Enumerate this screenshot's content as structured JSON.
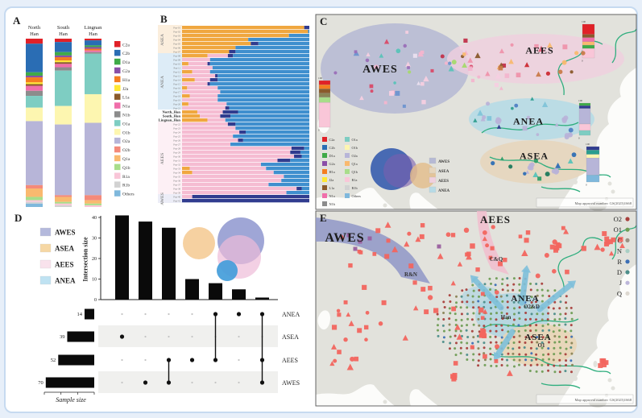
{
  "figure": {
    "bg": "#e7eff9",
    "card_bg": "#ffffff",
    "land": "#e2e2dc",
    "sea": "#fcfcfa",
    "river": "#2fae7e",
    "approval": "Map approval number: GS(2023)1668"
  },
  "panels": {
    "a": {
      "tag": "A"
    },
    "b": {
      "tag": "B"
    },
    "c": {
      "tag": "C"
    },
    "d": {
      "tag": "D"
    },
    "e": {
      "tag": "E"
    }
  },
  "haplogroups": {
    "names": [
      "C2a",
      "C2b",
      "D1a",
      "G2a",
      "H1a",
      "J2a",
      "L1a",
      "N1a",
      "N1b",
      "O1a",
      "O1b",
      "O2a",
      "O2b",
      "Q1a",
      "Q1b",
      "R1a",
      "R1b",
      "Others"
    ],
    "colors": [
      "#e02128",
      "#2a6db4",
      "#3faa48",
      "#8a4fa8",
      "#f47d20",
      "#ffe733",
      "#8a5a2b",
      "#f06eaa",
      "#8c8c8c",
      "#7ecdc2",
      "#fdf6b0",
      "#b7b5d8",
      "#f48a7a",
      "#f9b96f",
      "#a8dd8a",
      "#f9c6d8",
      "#d2d2d2",
      "#7fb8dc"
    ]
  },
  "chart_data": [
    {
      "id": "A",
      "type": "bar",
      "stacked": true,
      "orientation": "vertical",
      "categories": [
        "North Han",
        "South Han",
        "Lingnan Han"
      ],
      "category_lines": [
        [
          "North",
          "Han"
        ],
        [
          "South",
          "Han"
        ],
        [
          "Lingnan",
          "Han"
        ]
      ],
      "stack_labels": [
        "C2a",
        "C2b",
        "D1a",
        "G2a",
        "H1a",
        "J2a",
        "L1a",
        "N1a",
        "N1b",
        "O1a",
        "O1b",
        "O2a",
        "O2b",
        "Q1a",
        "Q1b",
        "R1a",
        "R1b",
        "Others"
      ],
      "series_percent": {
        "North Han": [
          3,
          17,
          2,
          1,
          3,
          1,
          1,
          3,
          3,
          7,
          8,
          38,
          2,
          5,
          2,
          1,
          1,
          2
        ],
        "South Han": [
          2,
          6,
          2,
          1,
          2,
          1,
          1,
          2,
          2,
          21,
          11,
          42,
          1,
          3,
          1,
          1,
          1,
          0
        ],
        "Lingnan Han": [
          1,
          3,
          1,
          1,
          1,
          0,
          0,
          1,
          1,
          24,
          17,
          43,
          3,
          2,
          1,
          1,
          0,
          0
        ]
      }
    },
    {
      "id": "B",
      "type": "bar",
      "stacked": true,
      "orientation": "horizontal",
      "segment_colors": {
        "or": "#f0a73f",
        "pk": "#f5bcd2",
        "bl": "#3f8fce",
        "nv": "#303c8f"
      },
      "bands": [
        {
          "name": "ASEA",
          "color": "#fbeedd",
          "from": 0,
          "to": 6
        },
        {
          "name": "ANEA",
          "color": "#ddecf7",
          "from": 7,
          "to": 20
        },
        {
          "name": "",
          "color": "#ffffff",
          "from": 21,
          "to": 23
        },
        {
          "name": "AEES",
          "color": "#fdf0f5",
          "from": 24,
          "to": 41
        },
        {
          "name": "AWES",
          "color": "#ecedf7",
          "from": 42,
          "to": 43
        }
      ],
      "rows": [
        {
          "l": "Pop-01",
          "s": [
            [
              "or",
              96
            ],
            [
              "nv",
              4
            ]
          ]
        },
        {
          "l": "Pop-02",
          "s": [
            [
              "or",
              99
            ],
            [
              "bl",
              1
            ]
          ]
        },
        {
          "l": "Pop-03",
          "s": [
            [
              "or",
              84
            ],
            [
              "bl",
              16
            ]
          ]
        },
        {
          "l": "Pop-04",
          "s": [
            [
              "or",
              52
            ],
            [
              "bl",
              48
            ]
          ]
        },
        {
          "l": "Pop-05",
          "s": [
            [
              "or",
              54
            ],
            [
              "nv",
              6
            ],
            [
              "bl",
              40
            ]
          ]
        },
        {
          "l": "Pop-06",
          "s": [
            [
              "or",
              42
            ],
            [
              "bl",
              58
            ]
          ]
        },
        {
          "l": "Pop-07",
          "s": [
            [
              "or",
              37
            ],
            [
              "nv",
              5
            ],
            [
              "bl",
              58
            ]
          ]
        },
        {
          "l": "Pop-08",
          "s": [
            [
              "or",
              20
            ],
            [
              "pk",
              16
            ],
            [
              "nv",
              4
            ],
            [
              "bl",
              60
            ]
          ]
        },
        {
          "l": "Pop-09",
          "s": [
            [
              "pk",
              22
            ],
            [
              "bl",
              78
            ]
          ]
        },
        {
          "l": "Pop-10",
          "s": [
            [
              "or",
              5
            ],
            [
              "pk",
              15
            ],
            [
              "nv",
              2
            ],
            [
              "bl",
              78
            ]
          ]
        },
        {
          "l": "Pop-11",
          "s": [
            [
              "pk",
              24
            ],
            [
              "bl",
              76
            ]
          ]
        },
        {
          "l": "Pop-12",
          "s": [
            [
              "or",
              8
            ],
            [
              "pk",
              14
            ],
            [
              "bl",
              78
            ]
          ]
        },
        {
          "l": "Pop-13",
          "s": [
            [
              "pk",
              26
            ],
            [
              "nv",
              2
            ],
            [
              "bl",
              72
            ]
          ]
        },
        {
          "l": "Pop-14",
          "s": [
            [
              "or",
              10
            ],
            [
              "pk",
              12
            ],
            [
              "nv",
              6
            ],
            [
              "bl",
              72
            ]
          ]
        },
        {
          "l": "Pop-15",
          "s": [
            [
              "pk",
              20
            ],
            [
              "nv",
              2
            ],
            [
              "bl",
              78
            ]
          ]
        },
        {
          "l": "Pop-16",
          "s": [
            [
              "or",
              4
            ],
            [
              "pk",
              24
            ],
            [
              "bl",
              72
            ]
          ]
        },
        {
          "l": "Pop-17",
          "s": [
            [
              "pk",
              30
            ],
            [
              "bl",
              70
            ]
          ]
        },
        {
          "l": "Pop-18",
          "s": [
            [
              "or",
              6
            ],
            [
              "pk",
              22
            ],
            [
              "bl",
              72
            ]
          ]
        },
        {
          "l": "Pop-19",
          "s": [
            [
              "pk",
              28
            ],
            [
              "bl",
              72
            ]
          ]
        },
        {
          "l": "Pop-20",
          "s": [
            [
              "or",
              5
            ],
            [
              "pk",
              30
            ],
            [
              "bl",
              65
            ]
          ]
        },
        {
          "l": "Pop-21",
          "s": [
            [
              "pk",
              34
            ],
            [
              "nv",
              3
            ],
            [
              "bl",
              63
            ]
          ]
        },
        {
          "l": "North_Han",
          "b": 1,
          "s": [
            [
              "or",
              12
            ],
            [
              "pk",
              20
            ],
            [
              "nv",
              12
            ],
            [
              "bl",
              56
            ]
          ]
        },
        {
          "l": "South_Han",
          "b": 1,
          "s": [
            [
              "or",
              14
            ],
            [
              "pk",
              16
            ],
            [
              "nv",
              8
            ],
            [
              "bl",
              62
            ]
          ]
        },
        {
          "l": "Lingnan_Han",
          "b": 1,
          "s": [
            [
              "or",
              20
            ],
            [
              "pk",
              14
            ],
            [
              "bl",
              66
            ]
          ]
        },
        {
          "l": "Pop-22",
          "s": [
            [
              "pk",
              36
            ],
            [
              "nv",
              6
            ],
            [
              "bl",
              58
            ]
          ]
        },
        {
          "l": "Pop-23",
          "s": [
            [
              "pk",
              42
            ],
            [
              "bl",
              58
            ]
          ]
        },
        {
          "l": "Pop-24",
          "s": [
            [
              "pk",
              45
            ],
            [
              "nv",
              5
            ],
            [
              "bl",
              50
            ]
          ]
        },
        {
          "l": "Pop-25",
          "s": [
            [
              "pk",
              40
            ],
            [
              "bl",
              60
            ]
          ]
        },
        {
          "l": "Pop-26",
          "s": [
            [
              "pk",
              44
            ],
            [
              "nv",
              4
            ],
            [
              "bl",
              52
            ]
          ]
        },
        {
          "l": "Pop-27",
          "s": [
            [
              "pk",
              38
            ],
            [
              "bl",
              62
            ]
          ]
        },
        {
          "l": "Pop-28",
          "s": [
            [
              "pk",
              86
            ],
            [
              "nv",
              10
            ],
            [
              "bl",
              4
            ]
          ]
        },
        {
          "l": "Pop-29",
          "s": [
            [
              "pk",
              85
            ],
            [
              "nv",
              8
            ],
            [
              "bl",
              7
            ]
          ]
        },
        {
          "l": "Pop-30",
          "s": [
            [
              "pk",
              88
            ],
            [
              "nv",
              6
            ],
            [
              "bl",
              6
            ]
          ]
        },
        {
          "l": "Pop-31",
          "s": [
            [
              "pk",
              75
            ],
            [
              "nv",
              10
            ],
            [
              "bl",
              15
            ]
          ]
        },
        {
          "l": "Pop-32",
          "s": [
            [
              "pk",
              62
            ],
            [
              "bl",
              38
            ]
          ]
        },
        {
          "l": "Pop-33",
          "s": [
            [
              "or",
              6
            ],
            [
              "pk",
              60
            ],
            [
              "bl",
              34
            ]
          ]
        },
        {
          "l": "Pop-34",
          "s": [
            [
              "or",
              8
            ],
            [
              "pk",
              64
            ],
            [
              "bl",
              28
            ]
          ]
        },
        {
          "l": "Pop-35",
          "s": [
            [
              "pk",
              80
            ],
            [
              "bl",
              20
            ]
          ]
        },
        {
          "l": "Pop-36",
          "s": [
            [
              "pk",
              78
            ],
            [
              "bl",
              22
            ]
          ]
        },
        {
          "l": "Pop-37",
          "s": [
            [
              "pk",
              68
            ],
            [
              "bl",
              32
            ]
          ]
        },
        {
          "l": "Pop-38",
          "s": [
            [
              "pk",
              90
            ],
            [
              "nv",
              4
            ],
            [
              "bl",
              6
            ]
          ]
        },
        {
          "l": "Pop-39",
          "s": [
            [
              "pk",
              82
            ],
            [
              "bl",
              18
            ]
          ]
        },
        {
          "l": "Pop-40",
          "s": [
            [
              "pk",
              8
            ],
            [
              "nv",
              92
            ]
          ]
        },
        {
          "l": "Pop-41",
          "s": [
            [
              "nv",
              100
            ]
          ]
        }
      ]
    },
    {
      "id": "D",
      "type": "upset",
      "ylabel": "Intersection size",
      "xlabel": "Sample size",
      "yticks": [
        0,
        10,
        20,
        30,
        40
      ],
      "intersection_sizes": [
        41,
        38,
        35,
        10,
        8,
        5,
        1
      ],
      "memberships": [
        [
          "ASEA"
        ],
        [
          "AWES"
        ],
        [
          "AEES",
          "AWES"
        ],
        [
          "AEES"
        ],
        [
          "ANEA",
          "AEES"
        ],
        [
          "ANEA"
        ],
        [
          "ANEA",
          "AEES",
          "AWES"
        ]
      ],
      "matrix_rows": [
        "ANEA",
        "ASEA",
        "AEES",
        "AWES"
      ],
      "set_sizes": {
        "ANEA": 14,
        "ASEA": 39,
        "AEES": 52,
        "AWES": 70
      },
      "legend": [
        {
          "name": "AWES",
          "color": "#b4b9dc"
        },
        {
          "name": "ASEA",
          "color": "#f6d7a4"
        },
        {
          "name": "AEES",
          "color": "#f9e2ec"
        },
        {
          "name": "ANEA",
          "color": "#bfe2f2"
        }
      ]
    }
  ],
  "panelC": {
    "labels": {
      "awes": "AWES",
      "aees": "AEES",
      "anea": "ANEA",
      "asea": "ASEA"
    },
    "region_fill": {
      "AWES": "#b6b9d4",
      "AEES": "#f0d0de",
      "ANEA": "#b7dbe6",
      "ASEA": "#e7d6bd"
    },
    "region_legend": [
      "AWES",
      "ASEA",
      "AEES",
      "ANEA"
    ],
    "legend_col1": [
      "C2a",
      "C2b",
      "D1a",
      "G2a",
      "H1a",
      "J2a",
      "L1a",
      "N1a",
      "N1b"
    ],
    "legend_col2": [
      "O1a",
      "O1b",
      "O2a",
      "Q1a",
      "Q1b",
      "R1a",
      "R1b",
      "Others"
    ],
    "minibar_axis": {
      "top": "100",
      "bottom": "0"
    },
    "mini_bars": {
      "AWES": [
        [
          "#e02128",
          9
        ],
        [
          "#f47d20",
          9
        ],
        [
          "#8a5a2b",
          9
        ],
        [
          "#8a8456",
          9
        ],
        [
          "#a8dd8a",
          11
        ],
        [
          "#f9c6d8",
          53
        ]
      ],
      "AEES": [
        [
          "#e02128",
          30
        ],
        [
          "#8a5a2b",
          10
        ],
        [
          "#f06eaa",
          12
        ],
        [
          "#f9b96f",
          10
        ],
        [
          "#3faa48",
          10
        ],
        [
          "#f9c6d8",
          28
        ]
      ],
      "ANEA": [
        [
          "#3faa48",
          8
        ],
        [
          "#303c8f",
          9
        ],
        [
          "#b7b5d8",
          48
        ],
        [
          "#f9c6d8",
          20
        ],
        [
          "#7ecdc2",
          15
        ]
      ],
      "ASEA": [
        [
          "#303c8f",
          10
        ],
        [
          "#2a9d8f",
          12
        ],
        [
          "#fdf6b0",
          10
        ],
        [
          "#b7b5d8",
          48
        ],
        [
          "#7fb8dc",
          20
        ]
      ]
    },
    "scatter_palettes": {
      "AWES": [
        "#f3b5ce",
        "#f6cfe0",
        "#a5d96d",
        "#59c3b8",
        "#6d93cf",
        "#9a6fb8",
        "#d94a68",
        "#eadfef"
      ],
      "MID": [
        "#f3b5ce",
        "#d94a68",
        "#a5d96d",
        "#f6cfe0",
        "#c2314b",
        "#59c3b8"
      ],
      "AEES": [
        "#cc2b33",
        "#e0607a",
        "#ef93ab",
        "#c97b4a",
        "#8a5a2b",
        "#f9b96f"
      ],
      "ANEA": [
        "#4f7fc4",
        "#7fc3d8",
        "#b9b3d8",
        "#2f9e8f",
        "#303c8f"
      ],
      "ASEA": [
        "#2e9e68",
        "#59c3b8",
        "#2f6fb4",
        "#b9b3d8",
        "#1f7a5c"
      ]
    }
  },
  "panelE": {
    "labels": {
      "awes": "AWES",
      "aees": "AEES",
      "anea": "ANEA",
      "asea": "ASEA",
      "anea_sub": "O2&D",
      "asea_sub": "O1",
      "han": "Han",
      "awes_arrow": "R&N",
      "aees_arrow": "C&Q"
    },
    "legend": [
      {
        "name": "O2",
        "color": "#a8403c"
      },
      {
        "name": "O1",
        "color": "#6f9d55"
      },
      {
        "name": "C",
        "color": "#9a9083"
      },
      {
        "name": "N",
        "color": "#a9cfc4"
      },
      {
        "name": "R",
        "color": "#3c6fb5"
      },
      {
        "name": "D",
        "color": "#4d8e8a"
      },
      {
        "name": "J",
        "color": "#bdb7da"
      },
      {
        "name": "Q",
        "color": "#ddd8d0"
      }
    ],
    "red": "#f2655e",
    "purple_sites": [
      [
        433,
        292
      ],
      [
        447,
        300
      ],
      [
        459,
        296
      ],
      [
        441,
        309
      ],
      [
        545,
        306
      ]
    ]
  }
}
